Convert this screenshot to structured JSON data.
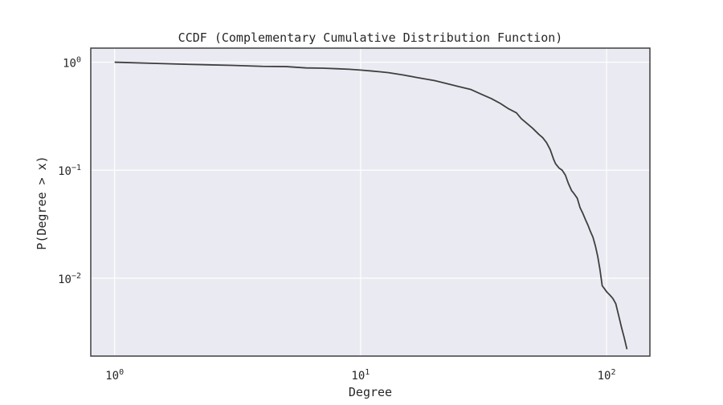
{
  "chart_data": {
    "type": "line",
    "title": "CCDF (Complementary Cumulative Distribution Function)",
    "xlabel": "Degree",
    "ylabel": "P(Degree > x)",
    "xscale": "log",
    "yscale": "log",
    "xlim": [
      0.8,
      150
    ],
    "ylim": [
      0.0019,
      1.35
    ],
    "grid": true,
    "x_ticks": [
      {
        "value": 1,
        "base": "10",
        "exp": "0"
      },
      {
        "value": 10,
        "base": "10",
        "exp": "1"
      },
      {
        "value": 100,
        "base": "10",
        "exp": "2"
      }
    ],
    "y_ticks": [
      {
        "value": 1,
        "base": "10",
        "exp": "0"
      },
      {
        "value": 0.1,
        "base": "10",
        "exp": "−1"
      },
      {
        "value": 0.01,
        "base": "10",
        "exp": "−2"
      }
    ],
    "series": [
      {
        "color": "#3f3f3f",
        "x": [
          1,
          2,
          3,
          4,
          5,
          6,
          7,
          8,
          9,
          10,
          11,
          12,
          13,
          15,
          17,
          20,
          22,
          25,
          28,
          31,
          34,
          37,
          40,
          43,
          45,
          48,
          50,
          53,
          55,
          57,
          59,
          61,
          62,
          64,
          66,
          68,
          70,
          72,
          74,
          76,
          78,
          80,
          82,
          84,
          86,
          88,
          90,
          92,
          94,
          96,
          98,
          100,
          103,
          106,
          109,
          112,
          115,
          118,
          121
        ],
        "y": [
          1.0,
          0.955,
          0.935,
          0.915,
          0.91,
          0.885,
          0.88,
          0.87,
          0.86,
          0.845,
          0.83,
          0.815,
          0.8,
          0.76,
          0.72,
          0.675,
          0.64,
          0.595,
          0.56,
          0.505,
          0.46,
          0.415,
          0.37,
          0.34,
          0.3,
          0.265,
          0.245,
          0.215,
          0.2,
          0.18,
          0.155,
          0.125,
          0.115,
          0.105,
          0.1,
          0.09,
          0.075,
          0.065,
          0.06,
          0.055,
          0.045,
          0.04,
          0.035,
          0.031,
          0.027,
          0.024,
          0.02,
          0.016,
          0.012,
          0.0085,
          0.008,
          0.0075,
          0.007,
          0.0065,
          0.0058,
          0.0045,
          0.0035,
          0.0028,
          0.0022
        ]
      }
    ]
  }
}
